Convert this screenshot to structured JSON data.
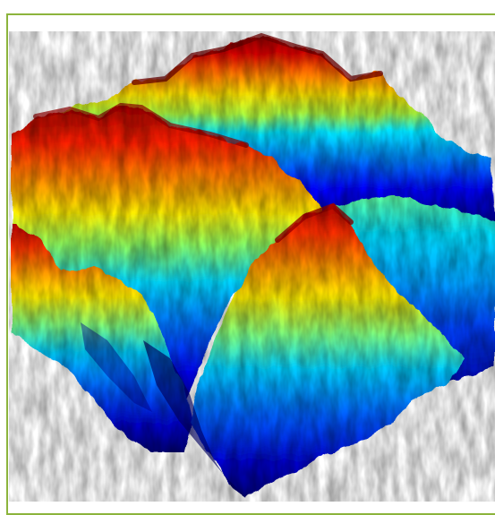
{
  "image": {
    "subject": "terrain-surface-plot",
    "colormap": "jet",
    "frame_color": "#8cb43c",
    "background_color": "#ffffff",
    "palette": {
      "deep_blue": "#00008b",
      "blue": "#0000ff",
      "azure": "#0080ff",
      "cyan": "#00e5ff",
      "green_yellow": "#b0ff40",
      "yellow": "#ffe600",
      "orange": "#ff8000",
      "red": "#e00000",
      "dark_red": "#8b0000"
    }
  }
}
